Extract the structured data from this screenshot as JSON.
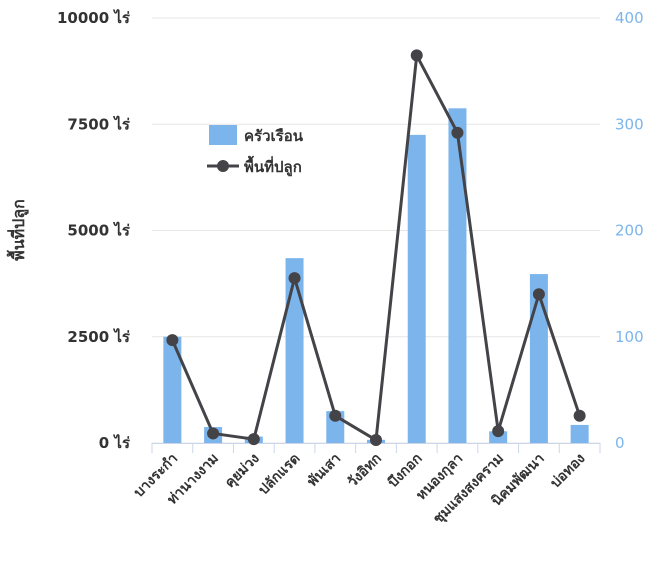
{
  "chart_data": {
    "type": "bar+line",
    "title": "",
    "ylabel": "พื้นที่ปลูก",
    "categories": [
      "บางระกำ",
      "ท่านางงาม",
      "คุยม่วง",
      "ปลักแรด",
      "พันเสา",
      "วังอิทก",
      "บึงกอก",
      "หนองกุลา",
      "ชุมแสงสงคราม",
      "นิคมพัฒนา",
      "บ่อทอง"
    ],
    "left_axis": {
      "ylim": [
        0,
        10000
      ],
      "ticks": [
        "0 ไร่",
        "2500 ไร่",
        "5000 ไร่",
        "7500 ไร่",
        "10000 ไร่"
      ]
    },
    "right_axis": {
      "ylim": [
        0,
        400
      ],
      "ticks": [
        "0",
        "100",
        "200",
        "300",
        "400"
      ]
    },
    "series": [
      {
        "name": "ครัวเรือน",
        "type": "bar",
        "axis": "right",
        "color": "#7cb5ec",
        "values": [
          100,
          15,
          6,
          174,
          30,
          3,
          290,
          315,
          11,
          159,
          17
        ]
      },
      {
        "name": "พื้นที่ปลูก",
        "type": "line",
        "axis": "left",
        "color": "#434348",
        "values": [
          2420,
          225,
          90,
          3880,
          640,
          70,
          9120,
          7300,
          280,
          3500,
          640
        ]
      }
    ],
    "legend_position": "upper-left inside plot",
    "grid": true
  }
}
